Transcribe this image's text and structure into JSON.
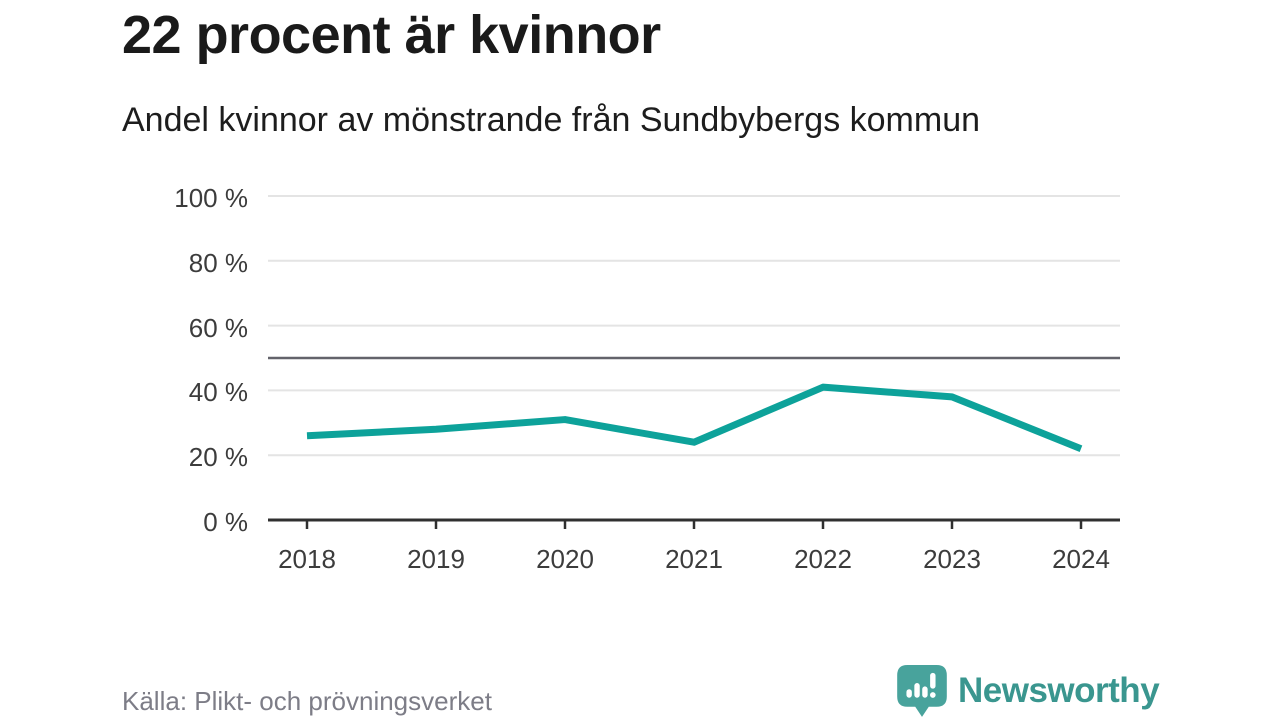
{
  "header": {
    "title": "22 procent är kvinnor",
    "subtitle": "Andel kvinnor av mönstrande från Sundbybergs kommun"
  },
  "chart_data": {
    "type": "line",
    "title": "22 procent är kvinnor",
    "subtitle": "Andel kvinnor av mönstrande från Sundbybergs kommun",
    "x": [
      "2018",
      "2019",
      "2020",
      "2021",
      "2022",
      "2023",
      "2024"
    ],
    "series": [
      {
        "name": "Andel kvinnor av mönstrande",
        "values": [
          26,
          28,
          31,
          24,
          41,
          38,
          22
        ]
      }
    ],
    "unit": "%",
    "ylim": [
      0,
      100
    ],
    "yticks": [
      0,
      20,
      40,
      60,
      80,
      100
    ],
    "ytick_labels": [
      "0 %",
      "20 %",
      "40 %",
      "60 %",
      "80 %",
      "100 %"
    ],
    "reference_line": 50,
    "grid": true,
    "legend": "none",
    "line_color": "#0da29a"
  },
  "footer": {
    "source": "Källa: Plikt- och prövningsverket",
    "brand": "Newsworthy"
  },
  "colors": {
    "background": "#ffffff",
    "title_text": "#1a1a1a",
    "subtitle_text": "#1d1d1d",
    "axis_label_text": "#3c3c3c",
    "gridline": "#e4e4e4",
    "reference_line": "#63636b",
    "axis_line": "#303030",
    "accent_teal": "#0da29a",
    "source_text": "#7d7d87",
    "logo_teal": "#48a39c",
    "logo_text_teal": "#3a968f"
  }
}
